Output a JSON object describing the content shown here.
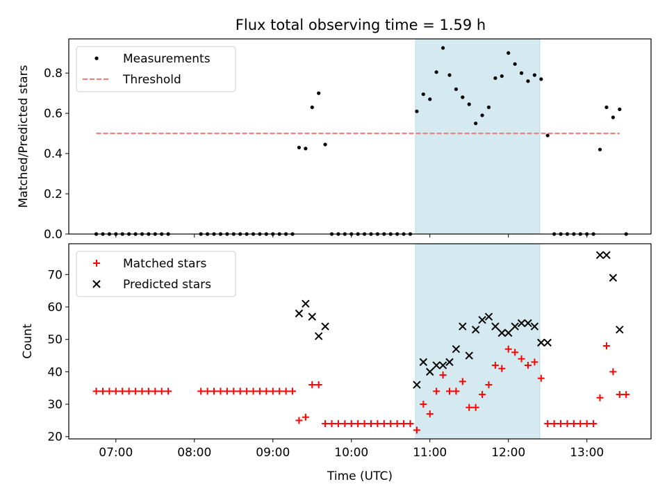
{
  "chart_data": {
    "title": "Flux total observing time = 1.59 h",
    "xlabel": "Time (UTC)",
    "x_ticks": [
      "07:00",
      "08:00",
      "09:00",
      "10:00",
      "11:00",
      "12:00",
      "13:00"
    ],
    "x_range": [
      "06:24",
      "13:49"
    ],
    "highlight_span": [
      "10:49",
      "12:24"
    ],
    "highlight_color": "#d4eaf0",
    "panels": [
      {
        "type": "scatter",
        "ylabel": "Matched/Predicted stars",
        "ylim": [
          0,
          0.97
        ],
        "y_ticks": [
          0.0,
          0.2,
          0.4,
          0.6,
          0.8
        ],
        "legend_position": "upper-left",
        "series": [
          {
            "name": "Measurements",
            "marker": "dot",
            "color": "#000000",
            "points": [
              [
                "06:45",
                0
              ],
              [
                "06:50",
                0
              ],
              [
                "06:55",
                0
              ],
              [
                "07:00",
                0
              ],
              [
                "07:05",
                0
              ],
              [
                "07:10",
                0
              ],
              [
                "07:15",
                0
              ],
              [
                "07:20",
                0
              ],
              [
                "07:25",
                0
              ],
              [
                "07:30",
                0
              ],
              [
                "07:35",
                0
              ],
              [
                "07:40",
                0
              ],
              [
                "08:05",
                0
              ],
              [
                "08:10",
                0
              ],
              [
                "08:15",
                0
              ],
              [
                "08:20",
                0
              ],
              [
                "08:25",
                0
              ],
              [
                "08:30",
                0
              ],
              [
                "08:35",
                0
              ],
              [
                "08:40",
                0
              ],
              [
                "08:45",
                0
              ],
              [
                "08:50",
                0
              ],
              [
                "08:55",
                0
              ],
              [
                "09:00",
                0
              ],
              [
                "09:05",
                0
              ],
              [
                "09:10",
                0
              ],
              [
                "09:15",
                0
              ],
              [
                "09:20",
                0.43
              ],
              [
                "09:25",
                0.425
              ],
              [
                "09:30",
                0.63
              ],
              [
                "09:35",
                0.7
              ],
              [
                "09:40",
                0.445
              ],
              [
                "09:45",
                0
              ],
              [
                "09:50",
                0
              ],
              [
                "09:55",
                0
              ],
              [
                "10:00",
                0
              ],
              [
                "10:05",
                0
              ],
              [
                "10:10",
                0
              ],
              [
                "10:15",
                0
              ],
              [
                "10:20",
                0
              ],
              [
                "10:25",
                0
              ],
              [
                "10:30",
                0
              ],
              [
                "10:35",
                0
              ],
              [
                "10:40",
                0
              ],
              [
                "10:45",
                0
              ],
              [
                "10:50",
                0.61
              ],
              [
                "10:55",
                0.695
              ],
              [
                "11:00",
                0.67
              ],
              [
                "11:05",
                0.805
              ],
              [
                "11:10",
                0.925
              ],
              [
                "11:15",
                0.79
              ],
              [
                "11:20",
                0.72
              ],
              [
                "11:25",
                0.68
              ],
              [
                "11:30",
                0.645
              ],
              [
                "11:35",
                0.55
              ],
              [
                "11:40",
                0.59
              ],
              [
                "11:45",
                0.63
              ],
              [
                "11:50",
                0.775
              ],
              [
                "11:55",
                0.785
              ],
              [
                "12:00",
                0.9
              ],
              [
                "12:05",
                0.845
              ],
              [
                "12:10",
                0.8
              ],
              [
                "12:15",
                0.76
              ],
              [
                "12:20",
                0.79
              ],
              [
                "12:25",
                0.77
              ],
              [
                "12:30",
                0.49
              ],
              [
                "12:35",
                0
              ],
              [
                "12:40",
                0
              ],
              [
                "12:45",
                0
              ],
              [
                "12:50",
                0
              ],
              [
                "12:55",
                0
              ],
              [
                "13:00",
                0
              ],
              [
                "13:05",
                0
              ],
              [
                "13:10",
                0.42
              ],
              [
                "13:15",
                0.63
              ],
              [
                "13:20",
                0.58
              ],
              [
                "13:25",
                0.62
              ],
              [
                "13:30",
                0
              ]
            ]
          },
          {
            "name": "Threshold",
            "marker": "dashed-line",
            "color": "#f08080",
            "points": [
              [
                "06:45",
                0.5
              ],
              [
                "13:25",
                0.5
              ]
            ]
          }
        ]
      },
      {
        "type": "scatter",
        "ylabel": "Count",
        "ylim": [
          19.3,
          79.5
        ],
        "y_ticks": [
          20,
          30,
          40,
          50,
          60,
          70
        ],
        "legend_position": "upper-left",
        "series": [
          {
            "name": "Matched stars",
            "marker": "plus",
            "color": "#ff0000",
            "points": [
              [
                "06:45",
                34
              ],
              [
                "06:50",
                34
              ],
              [
                "06:55",
                34
              ],
              [
                "07:00",
                34
              ],
              [
                "07:05",
                34
              ],
              [
                "07:10",
                34
              ],
              [
                "07:15",
                34
              ],
              [
                "07:20",
                34
              ],
              [
                "07:25",
                34
              ],
              [
                "07:30",
                34
              ],
              [
                "07:35",
                34
              ],
              [
                "07:40",
                34
              ],
              [
                "08:05",
                34
              ],
              [
                "08:10",
                34
              ],
              [
                "08:15",
                34
              ],
              [
                "08:20",
                34
              ],
              [
                "08:25",
                34
              ],
              [
                "08:30",
                34
              ],
              [
                "08:35",
                34
              ],
              [
                "08:40",
                34
              ],
              [
                "08:45",
                34
              ],
              [
                "08:50",
                34
              ],
              [
                "08:55",
                34
              ],
              [
                "09:00",
                34
              ],
              [
                "09:05",
                34
              ],
              [
                "09:10",
                34
              ],
              [
                "09:15",
                34
              ],
              [
                "09:20",
                25
              ],
              [
                "09:25",
                26
              ],
              [
                "09:30",
                36
              ],
              [
                "09:35",
                36
              ],
              [
                "09:40",
                24
              ],
              [
                "09:45",
                24
              ],
              [
                "09:50",
                24
              ],
              [
                "09:55",
                24
              ],
              [
                "10:00",
                24
              ],
              [
                "10:05",
                24
              ],
              [
                "10:10",
                24
              ],
              [
                "10:15",
                24
              ],
              [
                "10:20",
                24
              ],
              [
                "10:25",
                24
              ],
              [
                "10:30",
                24
              ],
              [
                "10:35",
                24
              ],
              [
                "10:40",
                24
              ],
              [
                "10:45",
                24
              ],
              [
                "10:50",
                22
              ],
              [
                "10:55",
                30
              ],
              [
                "11:00",
                27
              ],
              [
                "11:05",
                34
              ],
              [
                "11:10",
                39
              ],
              [
                "11:15",
                34
              ],
              [
                "11:20",
                34
              ],
              [
                "11:25",
                37
              ],
              [
                "11:30",
                29
              ],
              [
                "11:35",
                29
              ],
              [
                "11:40",
                33
              ],
              [
                "11:45",
                36
              ],
              [
                "11:50",
                42
              ],
              [
                "11:55",
                41
              ],
              [
                "12:00",
                47
              ],
              [
                "12:05",
                46
              ],
              [
                "12:10",
                44
              ],
              [
                "12:15",
                42
              ],
              [
                "12:20",
                43
              ],
              [
                "12:25",
                38
              ],
              [
                "12:30",
                24
              ],
              [
                "12:35",
                24
              ],
              [
                "12:40",
                24
              ],
              [
                "12:45",
                24
              ],
              [
                "12:50",
                24
              ],
              [
                "12:55",
                24
              ],
              [
                "13:00",
                24
              ],
              [
                "13:05",
                24
              ],
              [
                "13:10",
                32
              ],
              [
                "13:15",
                48
              ],
              [
                "13:20",
                40
              ],
              [
                "13:25",
                33
              ],
              [
                "13:30",
                33
              ]
            ]
          },
          {
            "name": "Predicted stars",
            "marker": "x",
            "color": "#000000",
            "points": [
              [
                "09:20",
                58
              ],
              [
                "09:25",
                61
              ],
              [
                "09:30",
                57
              ],
              [
                "09:35",
                51
              ],
              [
                "09:40",
                54
              ],
              [
                "10:50",
                36
              ],
              [
                "10:55",
                43
              ],
              [
                "11:00",
                40
              ],
              [
                "11:05",
                42
              ],
              [
                "11:10",
                42
              ],
              [
                "11:15",
                43
              ],
              [
                "11:20",
                47
              ],
              [
                "11:25",
                54
              ],
              [
                "11:30",
                45
              ],
              [
                "11:35",
                53
              ],
              [
                "11:40",
                56
              ],
              [
                "11:45",
                57
              ],
              [
                "11:50",
                54
              ],
              [
                "11:55",
                52
              ],
              [
                "12:00",
                52
              ],
              [
                "12:05",
                54
              ],
              [
                "12:10",
                55
              ],
              [
                "12:15",
                55
              ],
              [
                "12:20",
                54
              ],
              [
                "12:25",
                49
              ],
              [
                "12:30",
                49
              ],
              [
                "13:10",
                76
              ],
              [
                "13:15",
                76
              ],
              [
                "13:20",
                69
              ],
              [
                "13:25",
                53
              ]
            ]
          }
        ]
      }
    ]
  }
}
